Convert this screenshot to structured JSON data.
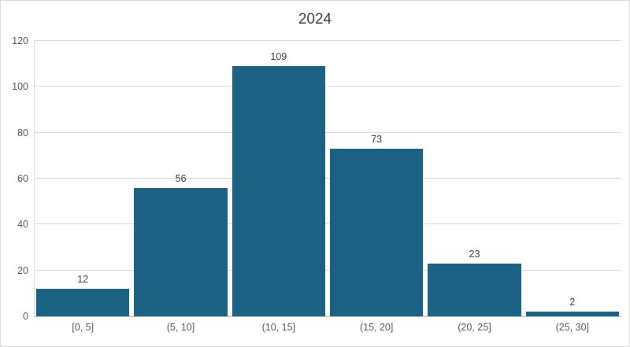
{
  "chart_data": {
    "type": "bar",
    "title": "2024",
    "categories": [
      "[0, 5]",
      "(5, 10]",
      "(10, 15]",
      "(15, 20]",
      "(20, 25]",
      "(25, 30]"
    ],
    "values": [
      12,
      56,
      109,
      73,
      23,
      2
    ],
    "xlabel": "",
    "ylabel": "",
    "ylim": [
      0,
      120
    ],
    "ytick_step": 20,
    "yticks": [
      0,
      20,
      40,
      60,
      80,
      100,
      120
    ],
    "grid": true,
    "legend": "none",
    "data_labels": true
  },
  "colors": {
    "bar_fill": "#1B6284",
    "gridline": "#D9D9D9",
    "axis_line": "#BFBFBF",
    "title_text": "#404040",
    "tick_text": "#595959",
    "data_label_text": "#404040",
    "border": "#D9D9D9",
    "background": "#FFFFFF"
  }
}
